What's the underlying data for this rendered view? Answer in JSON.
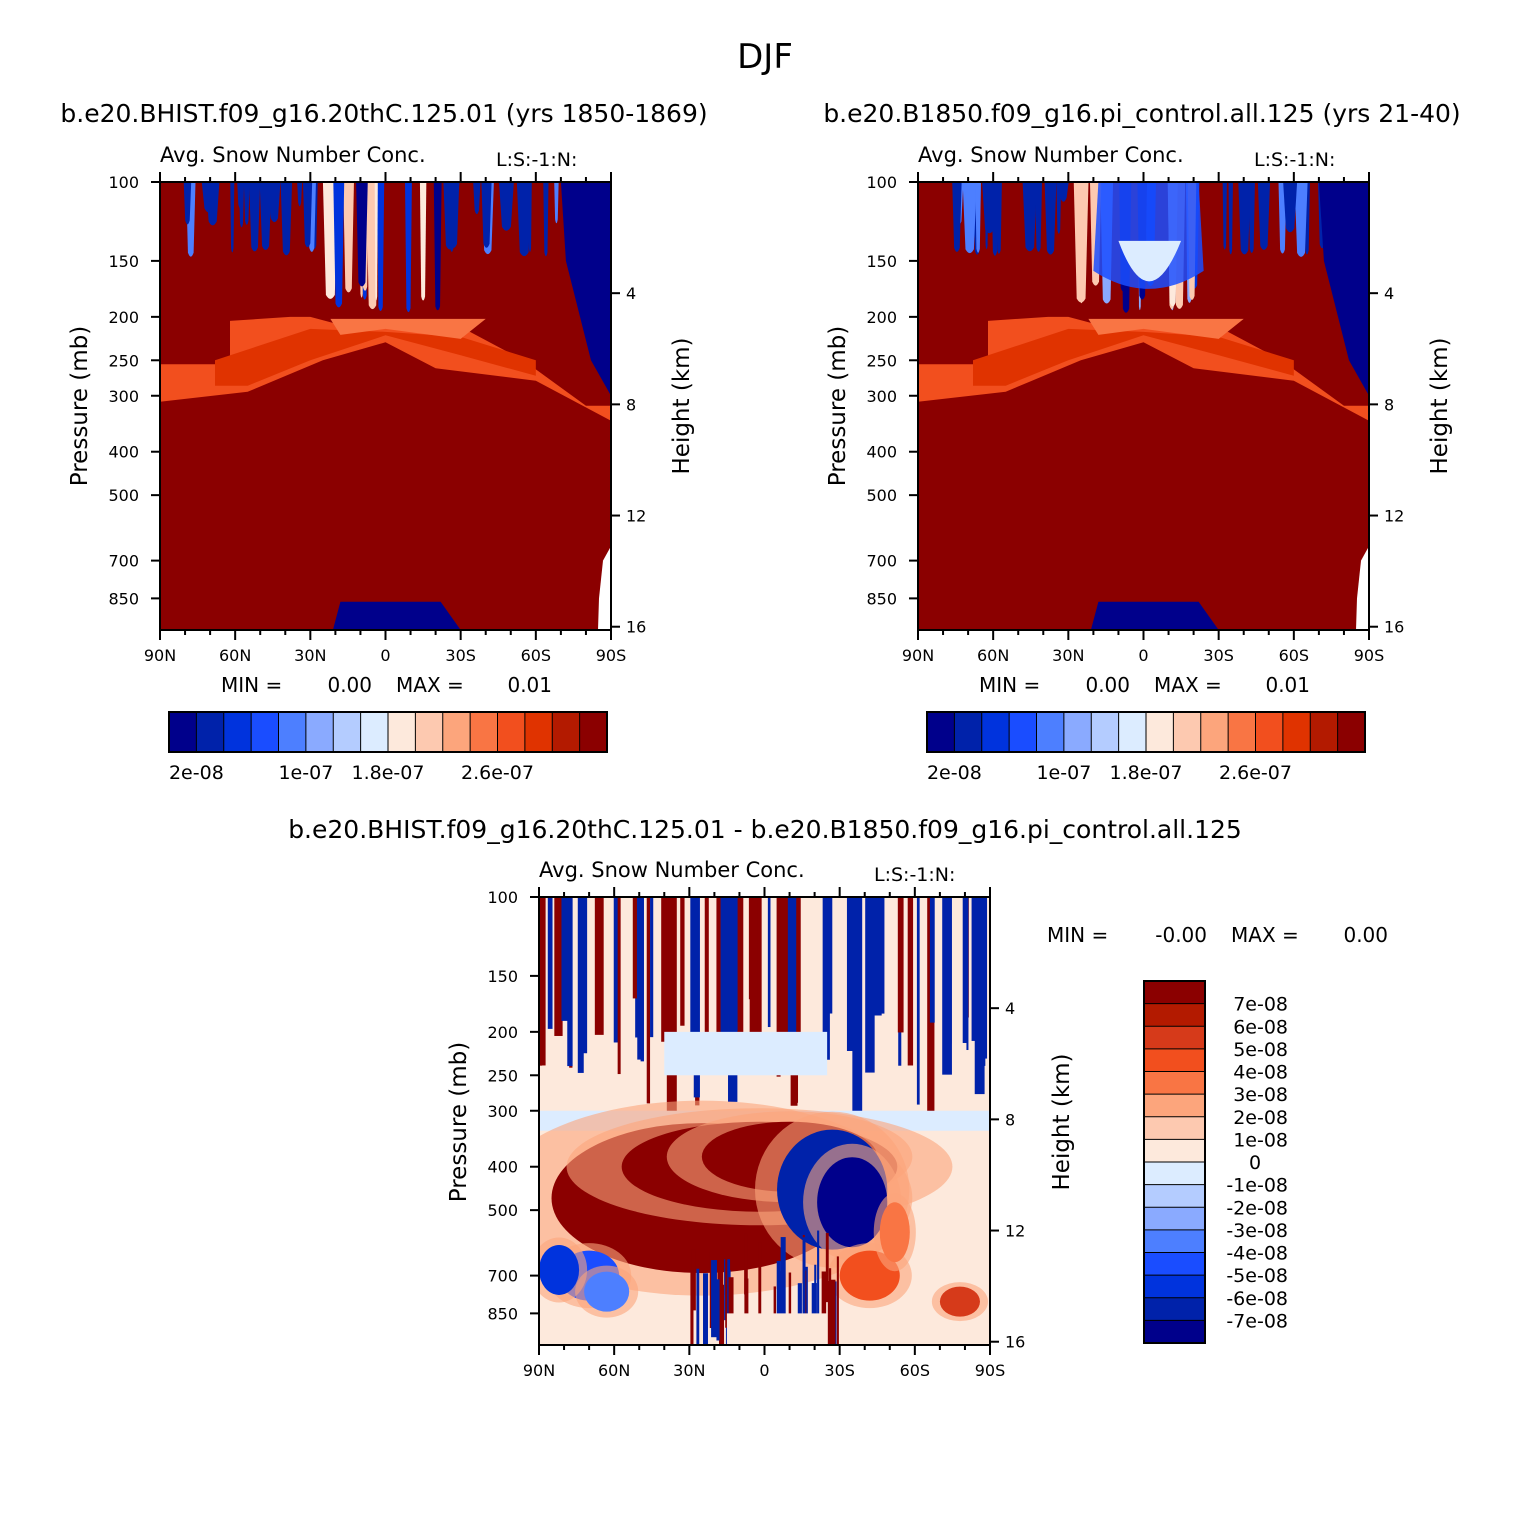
{
  "season": "DJF",
  "colors": {
    "scale14": [
      "#00008b",
      "#0022aa",
      "#0033dd",
      "#1a4dff",
      "#4d7fff",
      "#8aaaff",
      "#b4ccff",
      "#dcecff",
      "#fde9dc",
      "#fdc9b0",
      "#fca57c",
      "#f97544",
      "#f24f1e",
      "#e03300",
      "#b31a00",
      "#8b0000"
    ],
    "diff": [
      "#00008b",
      "#0022aa",
      "#0033dd",
      "#1a4dff",
      "#4d7fff",
      "#8aaaff",
      "#b4ccff",
      "#dcecff",
      "#fde9dc",
      "#fdc9b0",
      "#fca57c",
      "#f97544",
      "#f24f1e",
      "#d63a1a",
      "#b31a00",
      "#8b0000"
    ]
  },
  "chart_data": [
    {
      "type": "heatmap",
      "panel_title": "b.e20.BHIST.f09_g16.20thC.125.01 (yrs 1850-1869)",
      "title": "Avg. Snow Number Conc.",
      "subtitle": "L:S:-1:N:",
      "xlabel": "",
      "ylabel": "Pressure (mb)",
      "y2label": "Height (km)",
      "xticks": [
        "90N",
        "60N",
        "30N",
        "0",
        "30S",
        "60S",
        "90S"
      ],
      "xlim": [
        90,
        -90
      ],
      "yticks": [
        "100",
        "150",
        "200",
        "250",
        "300",
        "400",
        "500",
        "700",
        "850"
      ],
      "yvalues": [
        100,
        150,
        200,
        250,
        300,
        400,
        500,
        700,
        850
      ],
      "ylim": [
        100,
        1000
      ],
      "y2ticks": [
        "16",
        "12",
        "8",
        "4"
      ],
      "y2values": [
        16,
        12,
        8,
        4
      ],
      "min_label": "MIN =",
      "min_value": "0.00",
      "max_label": "MAX =",
      "max_value": "0.01",
      "colorbar_ticks": [
        "2e-08",
        "1e-07",
        "1.8e-07",
        "2.6e-07"
      ],
      "colorbar_levels": 16
    },
    {
      "type": "heatmap",
      "panel_title": "b.e20.B1850.f09_g16.pi_control.all.125 (yrs 21-40)",
      "title": "Avg. Snow Number Conc.",
      "subtitle": "L:S:-1:N:",
      "xlabel": "",
      "ylabel": "Pressure (mb)",
      "y2label": "Height (km)",
      "xticks": [
        "90N",
        "60N",
        "30N",
        "0",
        "30S",
        "60S",
        "90S"
      ],
      "xlim": [
        90,
        -90
      ],
      "yticks": [
        "100",
        "150",
        "200",
        "250",
        "300",
        "400",
        "500",
        "700",
        "850"
      ],
      "yvalues": [
        100,
        150,
        200,
        250,
        300,
        400,
        500,
        700,
        850
      ],
      "ylim": [
        100,
        1000
      ],
      "y2ticks": [
        "16",
        "12",
        "8",
        "4"
      ],
      "y2values": [
        16,
        12,
        8,
        4
      ],
      "min_label": "MIN =",
      "min_value": "0.00",
      "max_label": "MAX =",
      "max_value": "0.01",
      "colorbar_ticks": [
        "2e-08",
        "1e-07",
        "1.8e-07",
        "2.6e-07"
      ],
      "colorbar_levels": 16
    },
    {
      "type": "heatmap",
      "panel_title": "b.e20.BHIST.f09_g16.20thC.125.01 - b.e20.B1850.f09_g16.pi_control.all.125",
      "title": "Avg. Snow Number Conc.",
      "subtitle": "L:S:-1:N:",
      "xlabel": "",
      "ylabel": "Pressure (mb)",
      "y2label": "Height (km)",
      "xticks": [
        "90N",
        "60N",
        "30N",
        "0",
        "30S",
        "60S",
        "90S"
      ],
      "xlim": [
        90,
        -90
      ],
      "yticks": [
        "100",
        "150",
        "200",
        "250",
        "300",
        "400",
        "500",
        "700",
        "850"
      ],
      "yvalues": [
        100,
        150,
        200,
        250,
        300,
        400,
        500,
        700,
        850
      ],
      "ylim": [
        100,
        1000
      ],
      "y2ticks": [
        "16",
        "12",
        "8",
        "4"
      ],
      "y2values": [
        16,
        12,
        8,
        4
      ],
      "min_label": "MIN =",
      "min_value": "-0.00",
      "max_label": "MAX =",
      "max_value": "0.00",
      "colorbar_ticks": [
        "7e-08",
        "6e-08",
        "5e-08",
        "4e-08",
        "3e-08",
        "2e-08",
        "1e-08",
        "0",
        "-1e-08",
        "-2e-08",
        "-3e-08",
        "-4e-08",
        "-5e-08",
        "-6e-08",
        "-7e-08"
      ],
      "colorbar_levels": 16
    }
  ]
}
